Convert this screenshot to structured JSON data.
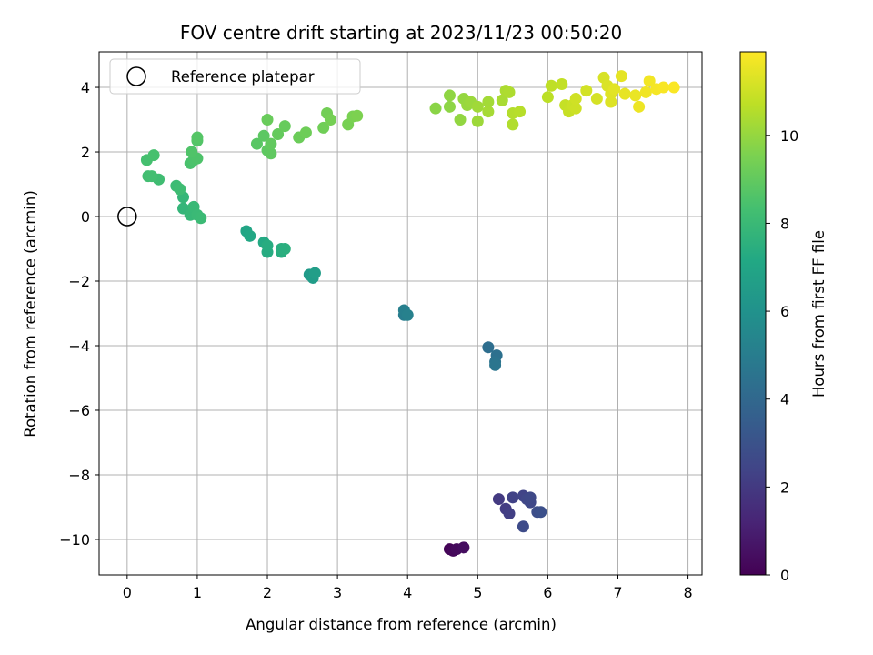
{
  "chart_data": {
    "type": "scatter",
    "title": "FOV centre drift starting at 2023/11/23 00:50:20",
    "xlabel": "Angular distance from reference (arcmin)",
    "ylabel": "Rotation from reference (arcmin)",
    "xlim": [
      -0.4,
      8.2
    ],
    "ylim": [
      -11.1,
      5.1
    ],
    "xticks": [
      0,
      1,
      2,
      3,
      4,
      5,
      6,
      7,
      8
    ],
    "yticks": [
      4,
      2,
      0,
      -2,
      -4,
      -6,
      -8,
      -10
    ],
    "xtick_labels": [
      "0",
      "1",
      "2",
      "3",
      "4",
      "5",
      "6",
      "7",
      "8"
    ],
    "ytick_labels": [
      "4",
      "2",
      "0",
      "−2",
      "−4",
      "−6",
      "−8",
      "−10"
    ],
    "grid": true,
    "legend": {
      "placement": "top-left",
      "entries": [
        "Reference platepar"
      ]
    },
    "reference_point": {
      "x": 0,
      "y": 0
    },
    "colorbar": {
      "label": "Hours from first FF file",
      "colormap": "viridis",
      "range": [
        0,
        11.9
      ],
      "ticks": [
        0,
        2,
        4,
        6,
        8,
        10
      ],
      "tick_labels": [
        "0",
        "2",
        "4",
        "6",
        "8",
        "10"
      ]
    },
    "points": [
      [
        4.6,
        -10.3,
        0.1
      ],
      [
        4.65,
        -10.35,
        0.2
      ],
      [
        4.7,
        -10.3,
        0.3
      ],
      [
        4.8,
        -10.25,
        0.4
      ],
      [
        5.3,
        -8.75,
        2.0
      ],
      [
        5.4,
        -9.05,
        2.1
      ],
      [
        5.45,
        -9.2,
        2.2
      ],
      [
        5.5,
        -8.7,
        2.3
      ],
      [
        5.65,
        -8.65,
        2.4
      ],
      [
        5.7,
        -8.75,
        2.5
      ],
      [
        5.75,
        -8.85,
        2.55
      ],
      [
        5.75,
        -8.7,
        2.6
      ],
      [
        5.65,
        -9.6,
        2.7
      ],
      [
        5.85,
        -9.15,
        2.8
      ],
      [
        5.9,
        -9.15,
        2.9
      ],
      [
        5.15,
        -4.05,
        4.3
      ],
      [
        5.27,
        -4.3,
        4.4
      ],
      [
        5.25,
        -4.5,
        4.5
      ],
      [
        5.25,
        -4.6,
        4.6
      ],
      [
        3.95,
        -3.05,
        5.0
      ],
      [
        3.95,
        -2.9,
        5.1
      ],
      [
        4.0,
        -3.05,
        5.2
      ],
      [
        2.6,
        -1.8,
        6.4
      ],
      [
        2.65,
        -1.9,
        6.5
      ],
      [
        2.68,
        -1.75,
        6.6
      ],
      [
        1.7,
        -0.45,
        7.0
      ],
      [
        1.75,
        -0.6,
        7.1
      ],
      [
        1.95,
        -0.8,
        7.2
      ],
      [
        2.0,
        -1.1,
        7.3
      ],
      [
        2.0,
        -0.9,
        7.35
      ],
      [
        2.2,
        -1.1,
        7.4
      ],
      [
        2.25,
        -1.0,
        7.5
      ],
      [
        2.2,
        -1.0,
        7.45
      ],
      [
        0.8,
        0.25,
        7.8
      ],
      [
        0.8,
        0.6,
        7.85
      ],
      [
        0.9,
        0.05,
        7.9
      ],
      [
        0.95,
        0.3,
        7.95
      ],
      [
        1.0,
        0.05,
        8.0
      ],
      [
        1.05,
        -0.05,
        8.05
      ],
      [
        0.7,
        0.95,
        8.1
      ],
      [
        0.75,
        0.85,
        8.15
      ],
      [
        0.45,
        1.15,
        8.2
      ],
      [
        0.3,
        1.25,
        8.25
      ],
      [
        0.35,
        1.25,
        8.3
      ],
      [
        0.28,
        1.75,
        8.35
      ],
      [
        0.38,
        1.9,
        8.4
      ],
      [
        0.9,
        1.65,
        8.45
      ],
      [
        0.95,
        1.75,
        8.5
      ],
      [
        1.0,
        1.8,
        8.55
      ],
      [
        0.92,
        2.0,
        8.6
      ],
      [
        1.0,
        2.35,
        8.65
      ],
      [
        1.0,
        2.45,
        8.7
      ],
      [
        1.85,
        2.25,
        8.8
      ],
      [
        1.95,
        2.5,
        8.85
      ],
      [
        2.0,
        2.05,
        8.9
      ],
      [
        2.05,
        1.95,
        8.95
      ],
      [
        2.05,
        2.25,
        9.0
      ],
      [
        2.15,
        2.55,
        9.05
      ],
      [
        2.25,
        2.8,
        9.1
      ],
      [
        2.0,
        3.0,
        9.15
      ],
      [
        2.45,
        2.45,
        9.2
      ],
      [
        2.55,
        2.6,
        9.25
      ],
      [
        2.8,
        2.75,
        9.3
      ],
      [
        2.85,
        3.2,
        9.35
      ],
      [
        2.9,
        3.0,
        9.4
      ],
      [
        3.15,
        2.85,
        9.45
      ],
      [
        3.22,
        3.1,
        9.5
      ],
      [
        3.28,
        3.12,
        9.55
      ],
      [
        4.4,
        3.35,
        9.8
      ],
      [
        4.6,
        3.4,
        9.85
      ],
      [
        4.6,
        3.75,
        9.9
      ],
      [
        4.75,
        3.0,
        9.95
      ],
      [
        4.8,
        3.65,
        10.0
      ],
      [
        4.85,
        3.45,
        10.05
      ],
      [
        4.9,
        3.55,
        10.1
      ],
      [
        5.0,
        2.95,
        10.15
      ],
      [
        5.0,
        3.4,
        10.2
      ],
      [
        5.15,
        3.55,
        10.25
      ],
      [
        5.15,
        3.25,
        10.3
      ],
      [
        5.35,
        3.6,
        10.35
      ],
      [
        5.4,
        3.9,
        10.4
      ],
      [
        5.45,
        3.85,
        10.45
      ],
      [
        5.5,
        2.85,
        10.5
      ],
      [
        5.5,
        3.2,
        10.55
      ],
      [
        5.6,
        3.25,
        10.6
      ],
      [
        6.0,
        3.7,
        10.7
      ],
      [
        6.05,
        4.05,
        10.75
      ],
      [
        6.2,
        4.1,
        10.8
      ],
      [
        6.25,
        3.45,
        10.85
      ],
      [
        6.3,
        3.25,
        10.9
      ],
      [
        6.35,
        3.45,
        10.95
      ],
      [
        6.4,
        3.35,
        11.0
      ],
      [
        6.4,
        3.65,
        11.05
      ],
      [
        6.55,
        3.9,
        11.1
      ],
      [
        6.7,
        3.65,
        11.15
      ],
      [
        6.8,
        4.3,
        11.2
      ],
      [
        6.85,
        4.05,
        11.25
      ],
      [
        6.9,
        3.55,
        11.3
      ],
      [
        6.9,
        3.8,
        11.35
      ],
      [
        6.95,
        3.95,
        11.4
      ],
      [
        7.05,
        4.35,
        11.45
      ],
      [
        7.1,
        3.8,
        11.5
      ],
      [
        7.25,
        3.75,
        11.55
      ],
      [
        7.3,
        3.4,
        11.6
      ],
      [
        7.4,
        3.85,
        11.65
      ],
      [
        7.45,
        4.2,
        11.7
      ],
      [
        7.55,
        3.95,
        11.75
      ],
      [
        7.65,
        4.0,
        11.8
      ],
      [
        7.8,
        4.0,
        11.85
      ]
    ]
  }
}
